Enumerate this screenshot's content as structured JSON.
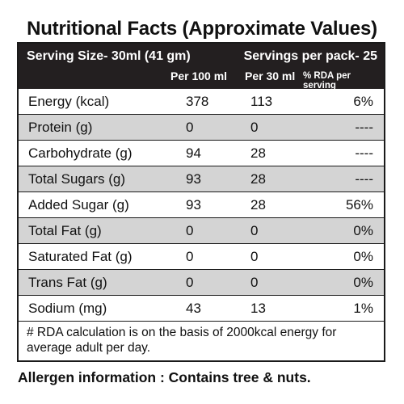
{
  "title": "Nutritional Facts (Approximate Values)",
  "header": {
    "serving_size": "Serving Size-  30ml (41 gm)",
    "servings_per_pack": "Servings per pack- 25",
    "col_per_100": "Per 100 ml",
    "col_per_30": "Per 30 ml",
    "col_rda": "% RDA per serving"
  },
  "rows": [
    {
      "label": "Energy (kcal)",
      "per100": "378",
      "per30": "113",
      "rda": "6%"
    },
    {
      "label": "Protein (g)",
      "per100": "0",
      "per30": "0",
      "rda": "----"
    },
    {
      "label": "Carbohydrate (g)",
      "per100": "94",
      "per30": "28",
      "rda": "----"
    },
    {
      "label": "Total Sugars (g)",
      "per100": "93",
      "per30": "28",
      "rda": "----"
    },
    {
      "label": "Added Sugar (g)",
      "per100": "93",
      "per30": "28",
      "rda": "56%"
    },
    {
      "label": "Total Fat (g)",
      "per100": "0",
      "per30": "0",
      "rda": "0%"
    },
    {
      "label": "Saturated Fat (g)",
      "per100": "0",
      "per30": "0",
      "rda": "0%"
    },
    {
      "label": "Trans Fat (g)",
      "per100": "0",
      "per30": "0",
      "rda": "0%"
    },
    {
      "label": "Sodium (mg)",
      "per100": "43",
      "per30": "13",
      "rda": "1%"
    }
  ],
  "note": "# RDA calculation is on the basis of 2000kcal energy for average adult per day.",
  "allergen": "Allergen information : Contains tree & nuts."
}
